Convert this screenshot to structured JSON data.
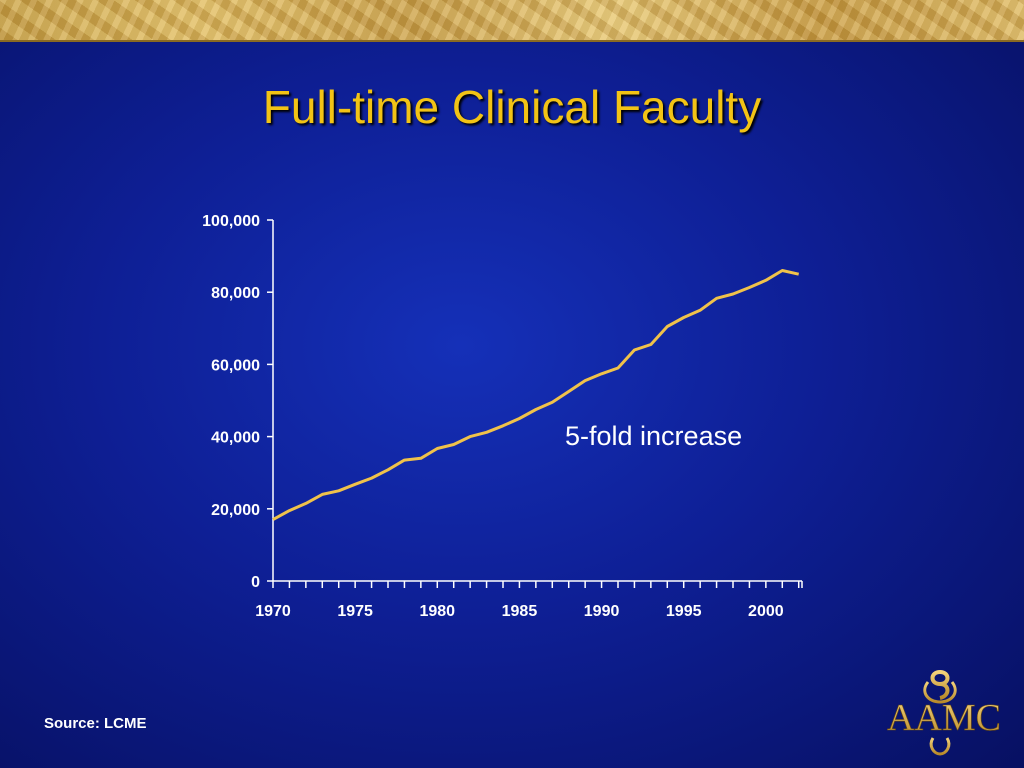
{
  "slide": {
    "title": "Full-time Clinical Faculty",
    "source": "Source: LCME",
    "logo_text": "AAMC"
  },
  "colors": {
    "title": "#f2c315",
    "line": "#f0c24a",
    "axis": "#ffffff",
    "background": "#0e1f95"
  },
  "chart_data": {
    "type": "line",
    "title": "",
    "xlabel": "",
    "ylabel": "",
    "ylim": [
      0,
      100000
    ],
    "yticks": [
      0,
      20000,
      40000,
      60000,
      80000,
      100000
    ],
    "ytick_labels": [
      "0",
      "20,000",
      "40,000",
      "60,000",
      "80,000",
      "100,000"
    ],
    "xlim": [
      1970,
      2002
    ],
    "xticks": [
      1970,
      1975,
      1980,
      1985,
      1990,
      1995,
      2000
    ],
    "xtick_labels": [
      "1970",
      "1975",
      "1980",
      "1985",
      "1990",
      "1995",
      "2000"
    ],
    "grid": false,
    "annotation": "5-fold increase",
    "series": [
      {
        "x": [
          1970,
          1971,
          1972,
          1973,
          1974,
          1975,
          1976,
          1977,
          1978,
          1979,
          1980,
          1981,
          1982,
          1983,
          1984,
          1985,
          1986,
          1987,
          1988,
          1989,
          1990,
          1991,
          1992,
          1993,
          1994,
          1995,
          1996,
          1997,
          1998,
          1999,
          2000,
          2001,
          2002
        ],
        "values": [
          17000,
          19500,
          21500,
          24000,
          25000,
          26800,
          28500,
          30800,
          33500,
          34000,
          36700,
          37800,
          40000,
          41200,
          43000,
          45000,
          47500,
          49500,
          52500,
          55500,
          57400,
          59000,
          64000,
          65500,
          70500,
          73000,
          75000,
          78300,
          79500,
          81300,
          83300,
          86000,
          85000
        ]
      }
    ]
  }
}
